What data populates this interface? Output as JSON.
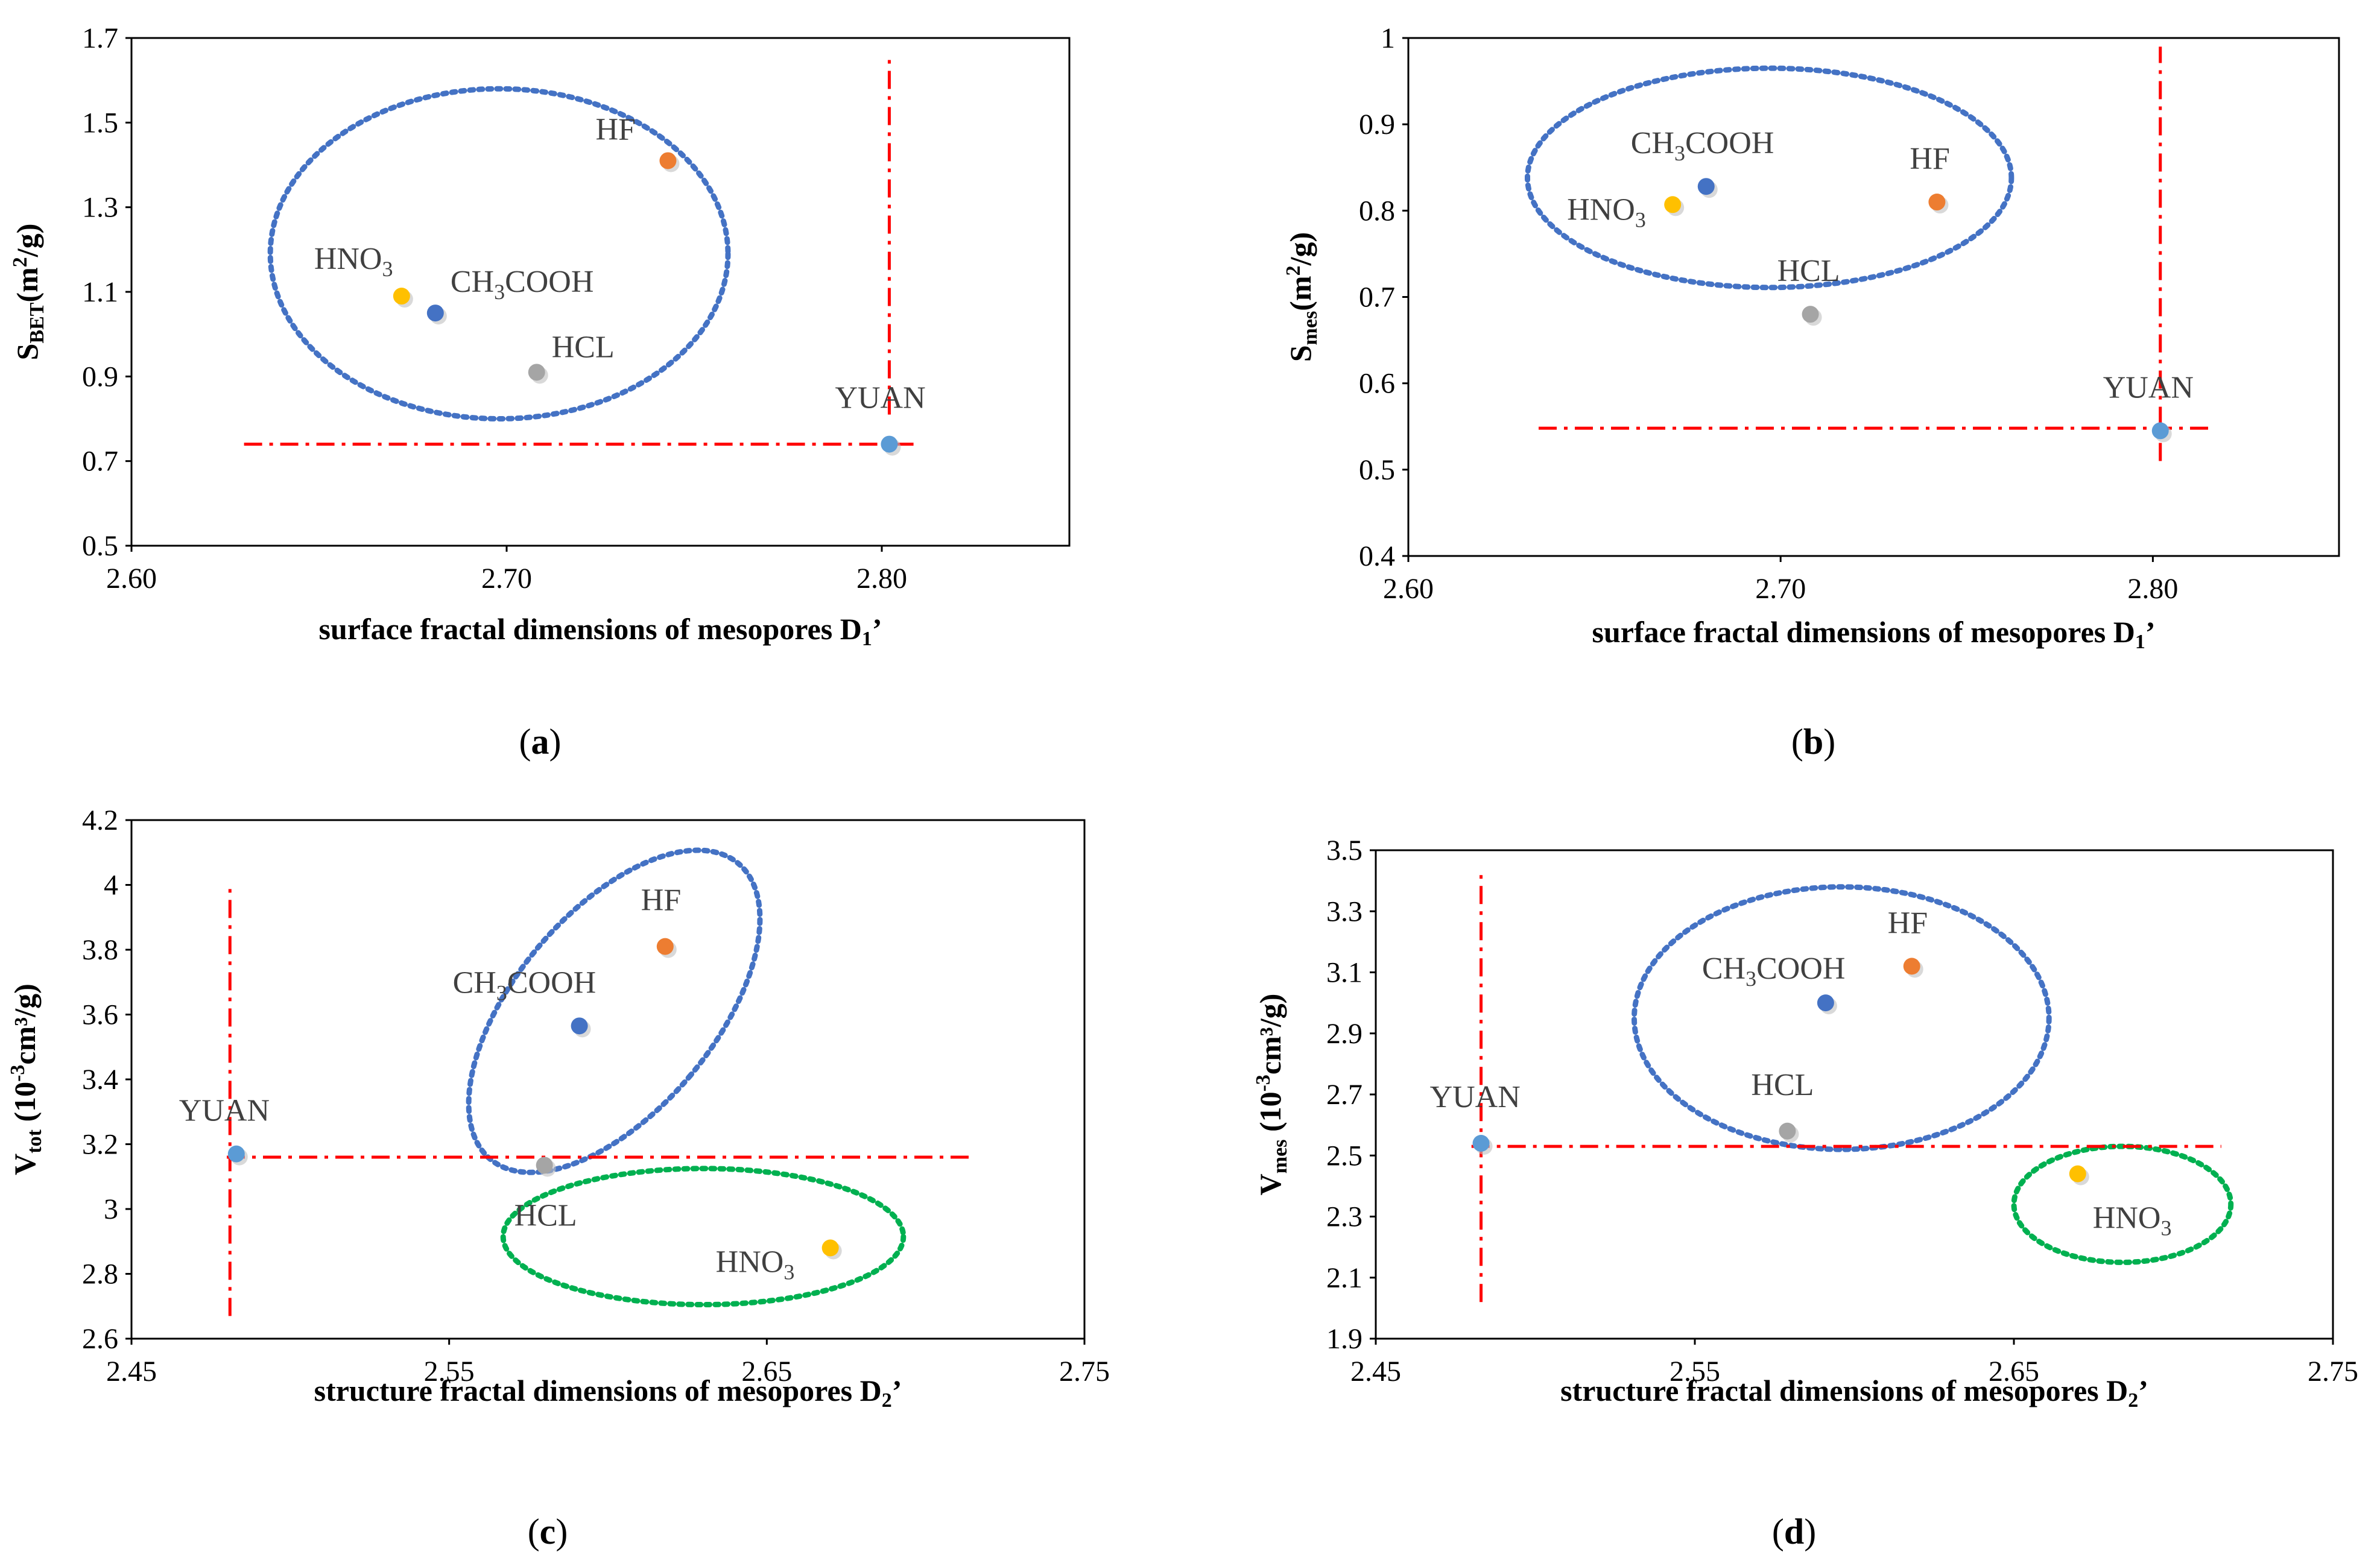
{
  "colors": {
    "YUAN": "#5b9bd5",
    "HF": "#ed7d31",
    "CH3COOH": "#4472c4",
    "HNO3": "#ffc000",
    "HCL": "#a5a5a5",
    "ref_line": "#ff0000",
    "ellipse_blue": "#4472c4",
    "ellipse_green": "#00b050",
    "label": "#404040"
  },
  "chart_data": [
    {
      "id": "a",
      "type": "scatter",
      "caption": "(a)",
      "xlabel": "surface fractal dimensions of mesopores D",
      "xlabel_sub": "1",
      "xlabel_suffix": "’",
      "ylabel_main": "S",
      "ylabel_sub": "BET",
      "ylabel_rest": "(m",
      "ylabel_sup": "2",
      "ylabel_end": "/g)",
      "xlim": [
        2.6,
        2.85
      ],
      "ylim": [
        0.5,
        1.7
      ],
      "xticks": [
        "2.60",
        "2.70",
        "2.80"
      ],
      "xtick_values": [
        2.6,
        2.7,
        2.8
      ],
      "yticks": [
        "0.5",
        "0.7",
        "0.9",
        "1.1",
        "1.3",
        "1.5",
        "1.7"
      ],
      "ytick_values": [
        0.5,
        0.7,
        0.9,
        1.1,
        1.3,
        1.5,
        1.7
      ],
      "points": [
        {
          "name": "YUAN",
          "x": 2.802,
          "y": 0.74
        },
        {
          "name": "HF",
          "x": 2.743,
          "y": 1.41
        },
        {
          "name": "CH3COOH",
          "x": 2.681,
          "y": 1.05
        },
        {
          "name": "HNO3",
          "x": 2.672,
          "y": 1.09
        },
        {
          "name": "HCL",
          "x": 2.708,
          "y": 0.91
        }
      ],
      "ref_lines": {
        "h": {
          "y": 0.74,
          "x_from": 2.63,
          "x_to": 2.81
        },
        "v": {
          "x": 2.802,
          "y_from": 0.81,
          "y_to": 1.65
        }
      },
      "ellipses": [
        {
          "color": "blue",
          "cx": 2.698,
          "cy": 1.19,
          "rx": 0.061,
          "ry": 0.39
        }
      ]
    },
    {
      "id": "b",
      "type": "scatter",
      "caption": "(b)",
      "xlabel": "surface fractal dimensions of mesopores D",
      "xlabel_sub": "1",
      "xlabel_suffix": "’",
      "ylabel_main": "S",
      "ylabel_sub": "mes",
      "ylabel_rest": "(m",
      "ylabel_sup": "2",
      "ylabel_end": "/g)",
      "xlim": [
        2.6,
        2.85
      ],
      "ylim": [
        0.4,
        1.0
      ],
      "xticks": [
        "2.60",
        "2.70",
        "2.80"
      ],
      "xtick_values": [
        2.6,
        2.7,
        2.8
      ],
      "yticks": [
        "0.4",
        "0.5",
        "0.6",
        "0.7",
        "0.8",
        "0.9",
        "1"
      ],
      "ytick_values": [
        0.4,
        0.5,
        0.6,
        0.7,
        0.8,
        0.9,
        1.0
      ],
      "points": [
        {
          "name": "YUAN",
          "x": 2.802,
          "y": 0.545
        },
        {
          "name": "HF",
          "x": 2.742,
          "y": 0.81
        },
        {
          "name": "CH3COOH",
          "x": 2.68,
          "y": 0.828
        },
        {
          "name": "HNO3",
          "x": 2.671,
          "y": 0.807
        },
        {
          "name": "HCL",
          "x": 2.708,
          "y": 0.68
        }
      ],
      "ref_lines": {
        "h": {
          "y": 0.548,
          "x_from": 2.635,
          "x_to": 2.815
        },
        "v": {
          "x": 2.802,
          "y_from": 0.51,
          "y_to": 0.99
        }
      },
      "ellipses": [
        {
          "color": "blue",
          "cx": 2.697,
          "cy": 0.838,
          "rx": 0.065,
          "ry": 0.127
        }
      ]
    },
    {
      "id": "c",
      "type": "scatter",
      "caption": "(c)",
      "xlabel": "structure fractal dimensions of mesopores D",
      "xlabel_sub": "2",
      "xlabel_suffix": "’",
      "ylabel_main": "V",
      "ylabel_sub": "tot",
      "ylabel_rest": " (10",
      "ylabel_sup": "-3",
      "ylabel_end": "cm³/g)",
      "xlim": [
        2.45,
        2.75
      ],
      "ylim": [
        2.6,
        4.2
      ],
      "xticks": [
        "2.45",
        "2.55",
        "2.65",
        "2.75"
      ],
      "xtick_values": [
        2.45,
        2.55,
        2.65,
        2.75
      ],
      "yticks": [
        "2.6",
        "2.8",
        "3",
        "3.2",
        "3.4",
        "3.6",
        "3.8",
        "4",
        "4.2"
      ],
      "ytick_values": [
        2.6,
        2.8,
        3.0,
        3.2,
        3.4,
        3.6,
        3.8,
        4.0,
        4.2
      ],
      "points": [
        {
          "name": "YUAN",
          "x": 2.483,
          "y": 3.17
        },
        {
          "name": "HF",
          "x": 2.618,
          "y": 3.81
        },
        {
          "name": "CH3COOH",
          "x": 2.591,
          "y": 3.565
        },
        {
          "name": "HNO3",
          "x": 2.67,
          "y": 2.88
        },
        {
          "name": "HCL",
          "x": 2.58,
          "y": 3.135
        }
      ],
      "ref_lines": {
        "h": {
          "y": 3.16,
          "x_from": 2.48,
          "x_to": 2.715
        },
        "v": {
          "x": 2.481,
          "y_from": 2.67,
          "y_to": 4.0
        }
      },
      "ellipses": [
        {
          "color": "blue",
          "cx": 2.602,
          "cy": 3.61,
          "rx": 0.026,
          "ry": 0.47,
          "angle": -0.7
        },
        {
          "color": "green",
          "cx": 2.63,
          "cy": 2.915,
          "rx": 0.063,
          "ry": 0.21
        }
      ]
    },
    {
      "id": "d",
      "type": "scatter",
      "caption": "(d)",
      "xlabel": "structure fractal dimensions of mesopores D",
      "xlabel_sub": "2",
      "xlabel_suffix": "’",
      "ylabel_main": "V",
      "ylabel_sub": "mes",
      "ylabel_rest": " (10",
      "ylabel_sup": "-3",
      "ylabel_end": "cm³/g)",
      "xlim": [
        2.45,
        2.75
      ],
      "ylim": [
        1.9,
        3.5
      ],
      "xticks": [
        "2.45",
        "2.55",
        "2.65",
        "2.75"
      ],
      "xtick_values": [
        2.45,
        2.55,
        2.65,
        2.75
      ],
      "yticks": [
        "1.9",
        "2.1",
        "2.3",
        "2.5",
        "2.7",
        "2.9",
        "3.1",
        "3.3",
        "3.5"
      ],
      "ytick_values": [
        1.9,
        2.1,
        2.3,
        2.5,
        2.7,
        2.9,
        3.1,
        3.3,
        3.5
      ],
      "points": [
        {
          "name": "YUAN",
          "x": 2.483,
          "y": 2.54
        },
        {
          "name": "HF",
          "x": 2.618,
          "y": 3.12
        },
        {
          "name": "CH3COOH",
          "x": 2.591,
          "y": 3.0
        },
        {
          "name": "HNO3",
          "x": 2.67,
          "y": 2.44
        },
        {
          "name": "HCL",
          "x": 2.579,
          "y": 2.58
        }
      ],
      "ref_lines": {
        "h": {
          "y": 2.53,
          "x_from": 2.48,
          "x_to": 2.715
        },
        "v": {
          "x": 2.483,
          "y_from": 2.02,
          "y_to": 3.42
        }
      },
      "ellipses": [
        {
          "color": "blue",
          "cx": 2.596,
          "cy": 2.95,
          "rx": 0.065,
          "ry": 0.43
        },
        {
          "color": "green",
          "cx": 2.684,
          "cy": 2.34,
          "rx": 0.034,
          "ry": 0.19
        }
      ]
    }
  ],
  "labels": {
    "YUAN": "YUAN",
    "HF": "HF",
    "CH3COOH_a": "CH",
    "CH3COOH_sub": "3",
    "CH3COOH_b": "COOH",
    "HNO3_a": "HNO",
    "HNO3_sub": "3",
    "HCL": "HCL"
  }
}
